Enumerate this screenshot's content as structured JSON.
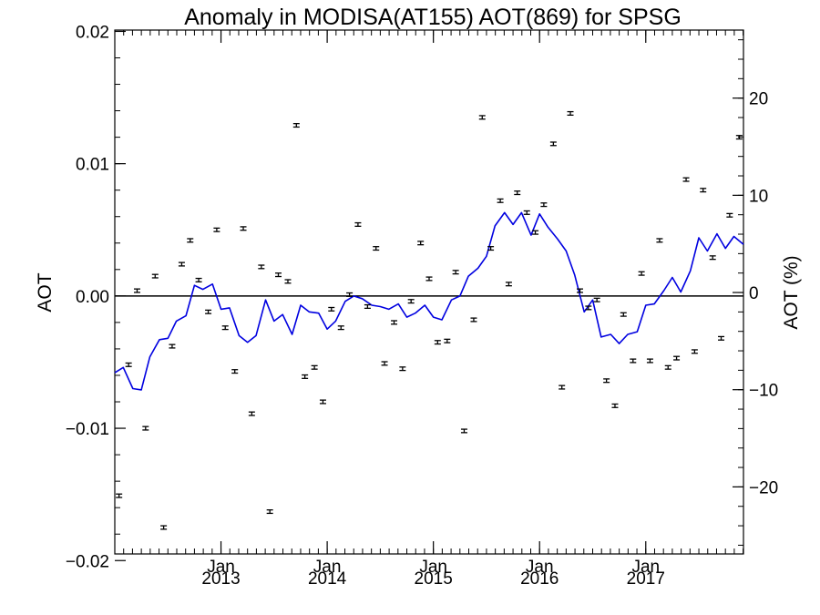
{
  "chart_data": {
    "type": "scatter",
    "title": "Anomaly in MODISA(AT155) AOT(869) for SPSG",
    "ylabel": "AOT",
    "ylabel_right": "AOT (%)",
    "xlabel": "",
    "xlim": [
      2012.0,
      2017.92
    ],
    "ylim": [
      -0.0195,
      0.0201
    ],
    "ylim_right": [
      -26.9,
      27.0
    ],
    "grid": false,
    "zero_line": true,
    "y_ticks": [
      {
        "value": 0.02,
        "label": "0.02"
      },
      {
        "value": 0.01,
        "label": "0.01"
      },
      {
        "value": 0.0,
        "label": "0.00"
      },
      {
        "value": -0.01,
        "label": "−0.01"
      },
      {
        "value": -0.02,
        "label": "−0.02"
      }
    ],
    "y_right_ticks": [
      {
        "value": 20,
        "label": "20"
      },
      {
        "value": 10,
        "label": "10"
      },
      {
        "value": 0,
        "label": "0"
      },
      {
        "value": -10,
        "label": "−10"
      },
      {
        "value": -20,
        "label": "−20"
      }
    ],
    "x_ticks": [
      {
        "value": 2013.0,
        "month": "Jan",
        "year": "2013"
      },
      {
        "value": 2014.0,
        "month": "Jan",
        "year": "2014"
      },
      {
        "value": 2015.0,
        "month": "Jan",
        "year": "2015"
      },
      {
        "value": 2016.0,
        "month": "Jan",
        "year": "2016"
      },
      {
        "value": 2017.0,
        "month": "Jan",
        "year": "2017"
      }
    ],
    "series": [
      {
        "kind": "points",
        "color": "#000000",
        "error": 0.00013,
        "points": [
          [
            2012.04,
            -0.0151
          ],
          [
            2012.13,
            -0.0052
          ],
          [
            2012.21,
            0.0004
          ],
          [
            2012.29,
            -0.01
          ],
          [
            2012.38,
            0.0015
          ],
          [
            2012.46,
            -0.0175
          ],
          [
            2012.54,
            -0.0038
          ],
          [
            2012.63,
            0.0024
          ],
          [
            2012.71,
            0.0042
          ],
          [
            2012.79,
            0.0012
          ],
          [
            2012.88,
            -0.0012
          ],
          [
            2012.96,
            0.005
          ],
          [
            2013.04,
            -0.0024
          ],
          [
            2013.13,
            -0.0057
          ],
          [
            2013.21,
            0.0051
          ],
          [
            2013.29,
            -0.0089
          ],
          [
            2013.38,
            0.0022
          ],
          [
            2013.46,
            -0.0163
          ],
          [
            2013.54,
            0.0016
          ],
          [
            2013.63,
            0.0011
          ],
          [
            2013.71,
            0.0129
          ],
          [
            2013.79,
            -0.0061
          ],
          [
            2013.88,
            -0.0054
          ],
          [
            2013.96,
            -0.008
          ],
          [
            2014.04,
            -0.001
          ],
          [
            2014.13,
            -0.0024
          ],
          [
            2014.21,
            0.0001
          ],
          [
            2014.29,
            0.0054
          ],
          [
            2014.38,
            -0.0008
          ],
          [
            2014.46,
            0.0036
          ],
          [
            2014.54,
            -0.0051
          ],
          [
            2014.63,
            -0.002
          ],
          [
            2014.71,
            -0.0055
          ],
          [
            2014.79,
            -0.0004
          ],
          [
            2014.88,
            0.004
          ],
          [
            2014.96,
            0.0013
          ],
          [
            2015.04,
            -0.0035
          ],
          [
            2015.13,
            -0.0034
          ],
          [
            2015.21,
            0.0018
          ],
          [
            2015.29,
            -0.0102
          ],
          [
            2015.38,
            -0.0018
          ],
          [
            2015.46,
            0.0135
          ],
          [
            2015.54,
            0.0036
          ],
          [
            2015.63,
            0.0072
          ],
          [
            2015.71,
            0.0009
          ],
          [
            2015.79,
            0.0078
          ],
          [
            2015.88,
            0.0063
          ],
          [
            2015.96,
            0.0048
          ],
          [
            2016.04,
            0.0069
          ],
          [
            2016.13,
            0.0115
          ],
          [
            2016.21,
            -0.0069
          ],
          [
            2016.29,
            0.0138
          ],
          [
            2016.38,
            0.0004
          ],
          [
            2016.46,
            -0.0009
          ],
          [
            2016.54,
            -0.0003
          ],
          [
            2016.63,
            -0.0064
          ],
          [
            2016.71,
            -0.0083
          ],
          [
            2016.79,
            -0.0014
          ],
          [
            2016.88,
            -0.0049
          ],
          [
            2016.96,
            0.0017
          ],
          [
            2017.04,
            -0.0049
          ],
          [
            2017.13,
            0.0042
          ],
          [
            2017.21,
            -0.0054
          ],
          [
            2017.29,
            -0.0047
          ],
          [
            2017.38,
            0.0088
          ],
          [
            2017.46,
            -0.0042
          ],
          [
            2017.54,
            0.008
          ],
          [
            2017.63,
            0.0029
          ],
          [
            2017.71,
            -0.0032
          ],
          [
            2017.79,
            0.0061
          ],
          [
            2017.88,
            0.012
          ]
        ]
      },
      {
        "kind": "line",
        "color": "#0000e0",
        "x": [
          2012.0,
          2012.08,
          2012.17,
          2012.25,
          2012.33,
          2012.42,
          2012.5,
          2012.58,
          2012.67,
          2012.75,
          2012.83,
          2012.92,
          2013.0,
          2013.08,
          2013.17,
          2013.25,
          2013.33,
          2013.42,
          2013.5,
          2013.58,
          2013.67,
          2013.75,
          2013.83,
          2013.92,
          2014.0,
          2014.08,
          2014.17,
          2014.25,
          2014.33,
          2014.42,
          2014.5,
          2014.58,
          2014.67,
          2014.75,
          2014.83,
          2014.92,
          2015.0,
          2015.08,
          2015.17,
          2015.25,
          2015.33,
          2015.42,
          2015.5,
          2015.58,
          2015.67,
          2015.75,
          2015.83,
          2015.92,
          2016.0,
          2016.08,
          2016.17,
          2016.25,
          2016.33,
          2016.42,
          2016.5,
          2016.58,
          2016.67,
          2016.75,
          2016.83,
          2016.92,
          2017.0,
          2017.08,
          2017.17,
          2017.25,
          2017.33,
          2017.42,
          2017.5,
          2017.58,
          2017.67,
          2017.75,
          2017.83,
          2017.92
        ],
        "values": [
          -0.0058,
          -0.0054,
          -0.007,
          -0.0071,
          -0.0046,
          -0.0033,
          -0.0032,
          -0.0019,
          -0.0015,
          0.0008,
          0.0005,
          0.0009,
          -0.001,
          -0.0009,
          -0.003,
          -0.0035,
          -0.003,
          -0.0003,
          -0.0019,
          -0.0014,
          -0.0029,
          -0.0007,
          -0.0012,
          -0.0013,
          -0.0025,
          -0.0019,
          -0.0004,
          0.0,
          -0.0002,
          -0.0007,
          -0.0008,
          -0.001,
          -0.0006,
          -0.0016,
          -0.0013,
          -0.0007,
          -0.0016,
          -0.0018,
          -0.0003,
          0.0,
          0.0015,
          0.0021,
          0.003,
          0.0053,
          0.0063,
          0.0054,
          0.0063,
          0.0046,
          0.0062,
          0.0052,
          0.0043,
          0.0034,
          0.0016,
          -0.0012,
          -0.0003,
          -0.0031,
          -0.0029,
          -0.0036,
          -0.0029,
          -0.0027,
          -0.0007,
          -0.0006,
          0.0004,
          0.0014,
          0.0003,
          0.0019,
          0.0044,
          0.0034,
          0.0047,
          0.0036,
          0.0045,
          0.0039
        ]
      }
    ]
  }
}
